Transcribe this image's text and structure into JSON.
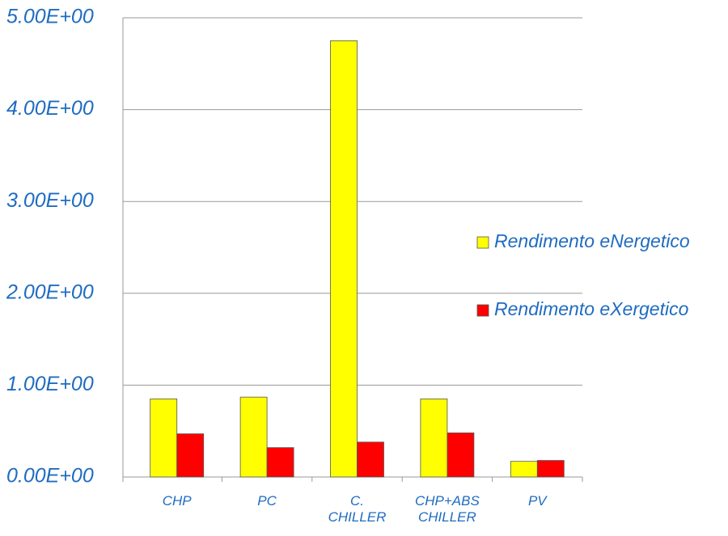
{
  "chart_data": {
    "type": "bar",
    "categories": [
      "CHP",
      "PC",
      "C. CHILLER",
      "CHP+ABS CHILLER",
      "PV"
    ],
    "series": [
      {
        "name": "Rendimento eNergetico",
        "color": "#ffff00",
        "values": [
          0.85,
          0.87,
          4.75,
          0.85,
          0.17
        ]
      },
      {
        "name": "Rendimento eXergetico",
        "color": "#ff0000",
        "values": [
          0.47,
          0.32,
          0.38,
          0.48,
          0.18
        ]
      }
    ],
    "ylim": [
      0,
      5
    ],
    "yticks": [
      {
        "value": 0,
        "label": "0.00E+00"
      },
      {
        "value": 1,
        "label": "1.00E+00"
      },
      {
        "value": 2,
        "label": "2.00E+00"
      },
      {
        "value": 3,
        "label": "3.00E+00"
      },
      {
        "value": 4,
        "label": "4.00E+00"
      },
      {
        "value": 5,
        "label": "5.00E+00"
      }
    ],
    "grid": true,
    "legend": "right"
  }
}
